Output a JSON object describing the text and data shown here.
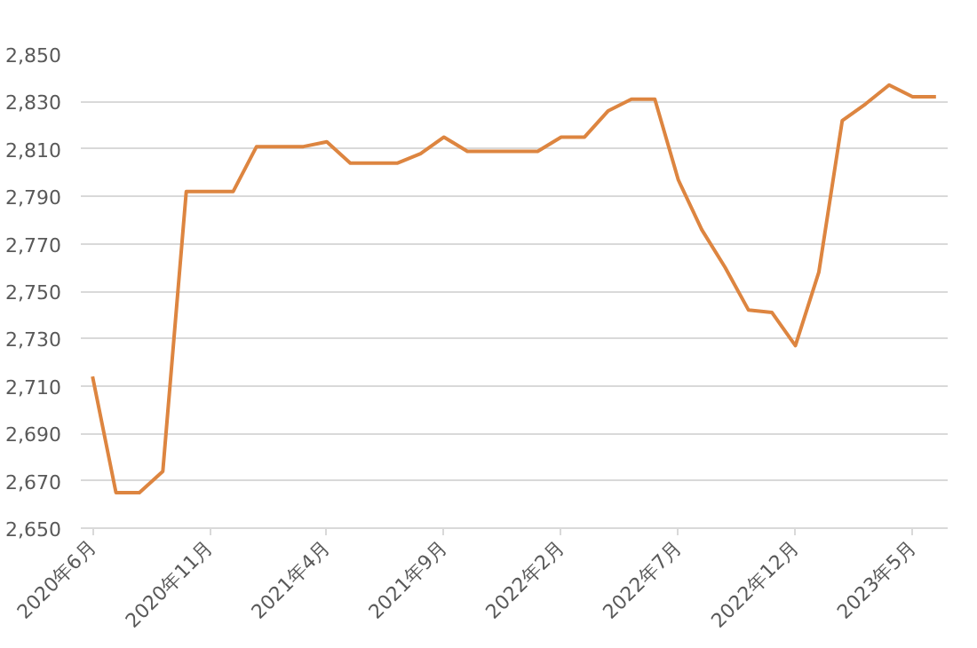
{
  "chart_data": {
    "type": "line",
    "categories": [
      "2020年6月",
      null,
      null,
      null,
      null,
      "2020年11月",
      null,
      null,
      null,
      null,
      "2021年4月",
      null,
      null,
      null,
      null,
      "2021年9月",
      null,
      null,
      null,
      null,
      "2022年2月",
      null,
      null,
      null,
      null,
      "2022年7月",
      null,
      null,
      null,
      null,
      "2022年12月",
      null,
      null,
      null,
      null,
      "2023年5月",
      null
    ],
    "series": [
      {
        "color": "#dd8540",
        "values": [
          2714,
          2665,
          2665,
          2674,
          2792,
          2792,
          2792,
          2811,
          2811,
          2811,
          2813,
          2804,
          2804,
          2804,
          2808,
          2815,
          2809,
          2809,
          2809,
          2809,
          2815,
          2815,
          2826,
          2831,
          2831,
          2797,
          2776,
          2760,
          2742,
          2741,
          2727,
          2758,
          2822,
          2829,
          2837,
          2832,
          2832
        ]
      }
    ],
    "ylim": [
      2650,
      2850
    ],
    "yticks": [
      {
        "value": 2650,
        "label": "2,650"
      },
      {
        "value": 2670,
        "label": "2,670"
      },
      {
        "value": 2690,
        "label": "2,690"
      },
      {
        "value": 2710,
        "label": "2,710"
      },
      {
        "value": 2730,
        "label": "2,730"
      },
      {
        "value": 2750,
        "label": "2,750"
      },
      {
        "value": 2770,
        "label": "2,770"
      },
      {
        "value": 2790,
        "label": "2,790"
      },
      {
        "value": 2810,
        "label": "2,810"
      },
      {
        "value": 2830,
        "label": "2,830"
      },
      {
        "value": 2850,
        "label": "2,850"
      }
    ],
    "grid": "y",
    "marker": "none",
    "line_style": "solid"
  }
}
